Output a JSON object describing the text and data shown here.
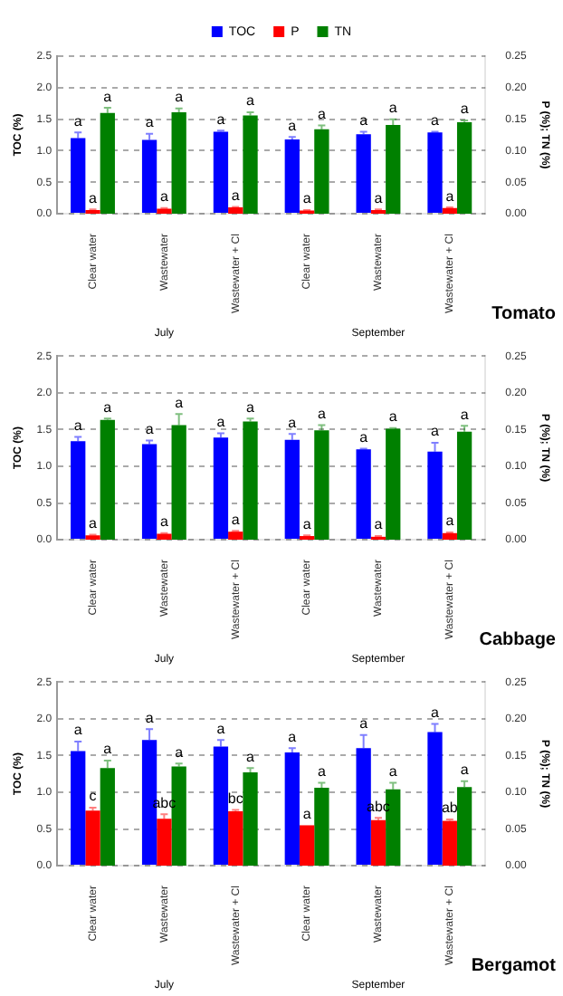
{
  "chart_data": [
    {
      "type": "bar",
      "categories": [
        "Clear water",
        "Wastewater",
        "Wastewater + Cl",
        "Clear water",
        "Wastewater",
        "Wastewater + Cl"
      ],
      "ylabel": "TOC (%)",
      "y2label": "P (%); TN (%)",
      "ylim": [
        0,
        2.5
      ],
      "yticks": [
        {
          "value": 0,
          "label": "0.0"
        },
        0.5,
        {
          "value": 1,
          "label": "1.0"
        },
        1.5,
        {
          "value": 2,
          "label": "2.0"
        },
        2.5
      ],
      "y2lim": [
        0,
        0.25
      ],
      "y2ticks": [
        {
          "value": 0,
          "label": "0.00"
        },
        0.05,
        {
          "value": 0.1,
          "label": "0.10"
        },
        0.15,
        {
          "value": 0.2,
          "label": "0.20"
        },
        0.25
      ],
      "grid": "y",
      "legend": "top",
      "annotations": [
        "July",
        "September",
        "Tomato"
      ],
      "series": [
        {
          "name": "TOC",
          "color": "#0000ff",
          "values": [
            1.2,
            1.17,
            1.3,
            1.18,
            1.26,
            1.29
          ],
          "errors": [
            0.09,
            0.1,
            0.02,
            0.04,
            0.04,
            0.01
          ],
          "value_labels": [
            "a",
            "a",
            "a",
            "a",
            "a",
            "a"
          ]
        },
        {
          "name": "P",
          "color": "#ff0000",
          "axis": "y2",
          "values": [
            0.006,
            0.008,
            0.01,
            0.005,
            0.006,
            0.009
          ],
          "errors": [
            0.001,
            0.001,
            0.001,
            0.001,
            0.001,
            0.001
          ],
          "value_labels": [
            "a",
            "a",
            "a",
            "a",
            "a",
            "a"
          ]
        },
        {
          "name": "TN",
          "color": "#008000",
          "axis": "y2",
          "values": [
            0.16,
            0.161,
            0.156,
            0.134,
            0.141,
            0.145
          ],
          "errors": [
            0.008,
            0.006,
            0.005,
            0.006,
            0.009,
            0.003
          ],
          "value_labels": [
            "a",
            "a",
            "a",
            "a",
            "a",
            "a"
          ]
        }
      ]
    },
    {
      "type": "bar",
      "categories": [
        "Clear water",
        "Wastewater",
        "Wastewater + Cl",
        "Clear water",
        "Wastewater",
        "Wastewater + Cl"
      ],
      "ylabel": "TOC (%)",
      "y2label": "P (%); TN (%)",
      "ylim": [
        0,
        2.5
      ],
      "yticks": [
        {
          "value": 0,
          "label": "0.0"
        },
        0.5,
        {
          "value": 1,
          "label": "1.0"
        },
        1.5,
        {
          "value": 2,
          "label": "2.0"
        },
        2.5
      ],
      "y2lim": [
        0,
        0.25
      ],
      "y2ticks": [
        {
          "value": 0,
          "label": "0.00"
        },
        0.05,
        {
          "value": 0.1,
          "label": "0.10"
        },
        0.15,
        {
          "value": 0.2,
          "label": "0.20"
        },
        0.25
      ],
      "grid": "y",
      "annotations": [
        "July",
        "September",
        "Cabbage"
      ],
      "series": [
        {
          "color": "#0000ff",
          "values": [
            1.34,
            1.3,
            1.39,
            1.36,
            1.23,
            1.2
          ],
          "errors": [
            0.06,
            0.05,
            0.06,
            0.08,
            0.01,
            0.12
          ],
          "value_labels": [
            "a",
            "a",
            "a",
            "a",
            "a",
            "a"
          ]
        },
        {
          "color": "#ff0000",
          "axis": "y2",
          "values": [
            0.006,
            0.008,
            0.011,
            0.005,
            0.004,
            0.009
          ],
          "errors": [
            0.001,
            0.001,
            0.001,
            0.001,
            0.001,
            0.001
          ],
          "value_labels": [
            "a",
            "a",
            "a",
            "a",
            "a",
            "a"
          ]
        },
        {
          "color": "#008000",
          "axis": "y2",
          "values": [
            0.163,
            0.156,
            0.161,
            0.149,
            0.151,
            0.147
          ],
          "errors": [
            0.002,
            0.015,
            0.004,
            0.007,
            0.001,
            0.008
          ],
          "value_labels": [
            "a",
            "a",
            "a",
            "a",
            "a",
            "a"
          ]
        }
      ]
    },
    {
      "type": "bar",
      "categories": [
        "Clear water",
        "Wastewater",
        "Wastewater + Cl",
        "Clear water",
        "Wastewater",
        "Wastewater + Cl"
      ],
      "ylabel": "TOC (%)",
      "y2label": "P (%); TN (%)",
      "ylim": [
        0,
        2.5
      ],
      "yticks": [
        {
          "value": 0,
          "label": "0.0"
        },
        0.5,
        {
          "value": 1,
          "label": "1.0"
        },
        1.5,
        {
          "value": 2,
          "label": "2.0"
        },
        2.5
      ],
      "y2lim": [
        0,
        0.25
      ],
      "y2ticks": [
        {
          "value": 0,
          "label": "0.00"
        },
        0.05,
        {
          "value": 0.1,
          "label": "0.10"
        },
        0.15,
        {
          "value": 0.2,
          "label": "0.20"
        },
        0.25
      ],
      "grid": "y",
      "annotations": [
        "July",
        "September",
        "Bergamot"
      ],
      "series": [
        {
          "color": "#0000ff",
          "values": [
            1.56,
            1.71,
            1.62,
            1.54,
            1.6,
            1.82
          ],
          "errors": [
            0.13,
            0.15,
            0.09,
            0.06,
            0.18,
            0.11
          ],
          "value_labels": [
            "a",
            "a",
            "a",
            "a",
            "a",
            "a"
          ]
        },
        {
          "color": "#ff0000",
          "axis": "y2",
          "values": [
            0.075,
            0.064,
            0.074,
            0.055,
            0.062,
            0.061
          ],
          "errors": [
            0.004,
            0.006,
            0.002,
            null,
            0.003,
            0.002
          ],
          "value_labels": [
            "c",
            "abc",
            "bc",
            "a",
            "abc",
            "ab"
          ]
        },
        {
          "color": "#008000",
          "axis": "y2",
          "values": [
            0.133,
            0.135,
            0.127,
            0.106,
            0.104,
            0.107
          ],
          "errors": [
            0.01,
            0.004,
            0.006,
            0.007,
            0.009,
            0.008
          ],
          "value_labels": [
            "a",
            "a",
            "a",
            "a",
            "a",
            "a"
          ]
        }
      ]
    }
  ]
}
